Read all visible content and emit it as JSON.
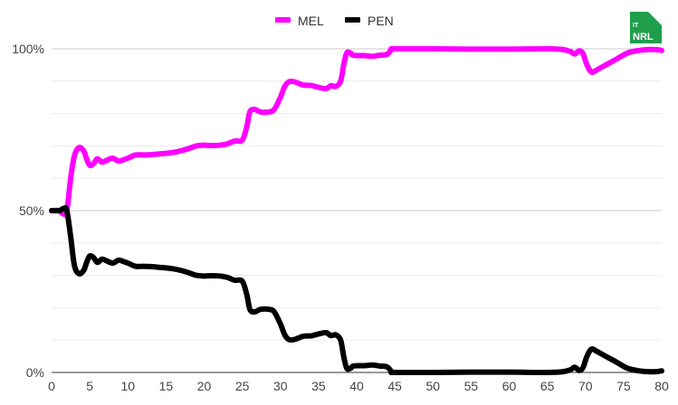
{
  "chart_data": {
    "type": "line",
    "title": "",
    "xlabel": "",
    "ylabel": "",
    "xlim": [
      0,
      80
    ],
    "ylim": [
      0,
      100
    ],
    "x_ticks": [
      0,
      5,
      10,
      15,
      20,
      25,
      30,
      35,
      40,
      45,
      50,
      55,
      60,
      65,
      70,
      75,
      80
    ],
    "x_tick_labels": [
      "0",
      "5",
      "10",
      "15",
      "20",
      "25",
      "30",
      "35",
      "40",
      "45",
      "50",
      "55",
      "60",
      "65",
      "70",
      "75",
      "80"
    ],
    "y_ticks": [
      0,
      50,
      100
    ],
    "y_tick_labels": [
      "0%",
      "50%",
      "100%"
    ],
    "minor_gridlines_y": [
      10,
      20,
      30,
      40,
      60,
      70,
      80,
      90
    ],
    "grid": true,
    "legend": "top-center",
    "series": [
      {
        "name": "MEL",
        "color": "#ff00ff",
        "points": [
          [
            0,
            50
          ],
          [
            1,
            50
          ],
          [
            1.5,
            49
          ],
          [
            2,
            50
          ],
          [
            2.5,
            60
          ],
          [
            3,
            67
          ],
          [
            3.6,
            69.5
          ],
          [
            4.2,
            68.5
          ],
          [
            4.6,
            66
          ],
          [
            5,
            64
          ],
          [
            5.5,
            64.5
          ],
          [
            6,
            66
          ],
          [
            6.6,
            65
          ],
          [
            7.2,
            65.5
          ],
          [
            8,
            66.2
          ],
          [
            8.8,
            65.3
          ],
          [
            9.5,
            65.8
          ],
          [
            10,
            66.2
          ],
          [
            11,
            67.2
          ],
          [
            12,
            67.2
          ],
          [
            13,
            67.3
          ],
          [
            14,
            67.5
          ],
          [
            15,
            67.7
          ],
          [
            16,
            68
          ],
          [
            17,
            68.5
          ],
          [
            18,
            69.2
          ],
          [
            19,
            70
          ],
          [
            20,
            70.2
          ],
          [
            21,
            70.1
          ],
          [
            22,
            70.2
          ],
          [
            23,
            70.6
          ],
          [
            24,
            71.5
          ],
          [
            25,
            71.8
          ],
          [
            25.6,
            76
          ],
          [
            26,
            80.5
          ],
          [
            26.6,
            81.3
          ],
          [
            27.4,
            80.5
          ],
          [
            28.5,
            80.5
          ],
          [
            29.2,
            81.3
          ],
          [
            30,
            85
          ],
          [
            30.6,
            88.5
          ],
          [
            31.2,
            89.9
          ],
          [
            32,
            89.7
          ],
          [
            33,
            88.8
          ],
          [
            34,
            88.7
          ],
          [
            35,
            88.1
          ],
          [
            36,
            87.7
          ],
          [
            36.6,
            88.6
          ],
          [
            37.3,
            88.4
          ],
          [
            37.9,
            90
          ],
          [
            38.3,
            95
          ],
          [
            38.7,
            98.7
          ],
          [
            39.2,
            98.7
          ],
          [
            39.6,
            98
          ],
          [
            41,
            97.9
          ],
          [
            42,
            97.7
          ],
          [
            43,
            98
          ],
          [
            44,
            98.3
          ],
          [
            44.6,
            99.8
          ],
          [
            45,
            100
          ],
          [
            50,
            100
          ],
          [
            55,
            99.9
          ],
          [
            60,
            99.9
          ],
          [
            65,
            100
          ],
          [
            67,
            99.8
          ],
          [
            68,
            99.2
          ],
          [
            68.6,
            98.4
          ],
          [
            69.2,
            99.4
          ],
          [
            69.7,
            98.4
          ],
          [
            70.2,
            95
          ],
          [
            70.8,
            92.8
          ],
          [
            71.5,
            93.5
          ],
          [
            72.5,
            94.8
          ],
          [
            74,
            96.7
          ],
          [
            75.5,
            98.7
          ],
          [
            77,
            99.5
          ],
          [
            78.5,
            99.8
          ],
          [
            79.5,
            99.7
          ],
          [
            80,
            99.5
          ]
        ]
      },
      {
        "name": "PEN",
        "color": "#000000",
        "points": [
          [
            0,
            50
          ],
          [
            1,
            50
          ],
          [
            1.6,
            50.7
          ],
          [
            2,
            50
          ],
          [
            2.5,
            42
          ],
          [
            3,
            33
          ],
          [
            3.6,
            30.5
          ],
          [
            4.2,
            31.5
          ],
          [
            4.6,
            34
          ],
          [
            5,
            36
          ],
          [
            5.5,
            35.5
          ],
          [
            6,
            34
          ],
          [
            6.6,
            35
          ],
          [
            7.2,
            34.5
          ],
          [
            8,
            33.8
          ],
          [
            8.8,
            34.7
          ],
          [
            9.5,
            34.2
          ],
          [
            10,
            33.8
          ],
          [
            11,
            32.8
          ],
          [
            12,
            32.8
          ],
          [
            13,
            32.7
          ],
          [
            14,
            32.5
          ],
          [
            15,
            32.3
          ],
          [
            16,
            32
          ],
          [
            17,
            31.5
          ],
          [
            18,
            30.8
          ],
          [
            19,
            30
          ],
          [
            20,
            29.8
          ],
          [
            21,
            29.9
          ],
          [
            22,
            29.8
          ],
          [
            23,
            29.4
          ],
          [
            24,
            28.5
          ],
          [
            25,
            28.2
          ],
          [
            25.6,
            24
          ],
          [
            26,
            19.5
          ],
          [
            26.6,
            18.7
          ],
          [
            27.4,
            19.5
          ],
          [
            28.5,
            19.5
          ],
          [
            29.2,
            18.7
          ],
          [
            30,
            15
          ],
          [
            30.6,
            11.5
          ],
          [
            31.2,
            10.1
          ],
          [
            32,
            10.3
          ],
          [
            33,
            11.2
          ],
          [
            34,
            11.3
          ],
          [
            35,
            11.9
          ],
          [
            36,
            12.3
          ],
          [
            36.6,
            11.4
          ],
          [
            37.3,
            11.6
          ],
          [
            37.9,
            10
          ],
          [
            38.3,
            5
          ],
          [
            38.7,
            1.3
          ],
          [
            39.2,
            1.3
          ],
          [
            39.6,
            2
          ],
          [
            41,
            2.1
          ],
          [
            42,
            2.3
          ],
          [
            43,
            2
          ],
          [
            44,
            1.7
          ],
          [
            44.6,
            0.2
          ],
          [
            45,
            0
          ],
          [
            50,
            0
          ],
          [
            55,
            0.1
          ],
          [
            60,
            0.1
          ],
          [
            65,
            0
          ],
          [
            67,
            0.2
          ],
          [
            68,
            0.8
          ],
          [
            68.6,
            1.6
          ],
          [
            69.2,
            0.6
          ],
          [
            69.7,
            1.6
          ],
          [
            70.2,
            5
          ],
          [
            70.8,
            7.2
          ],
          [
            71.5,
            6.5
          ],
          [
            72.5,
            5.2
          ],
          [
            74,
            3.3
          ],
          [
            75.5,
            1.3
          ],
          [
            77,
            0.5
          ],
          [
            78.5,
            0.2
          ],
          [
            79.5,
            0.3
          ],
          [
            80,
            0.5
          ]
        ]
      }
    ]
  },
  "logo": {
    "line1": "IT",
    "line2": "NRL",
    "background_color": "#1f9e4b",
    "corner_color": "#ffffff"
  },
  "colors": {
    "major_grid": "#cccccc",
    "minor_grid": "#ebebeb",
    "axis": "#333333"
  }
}
